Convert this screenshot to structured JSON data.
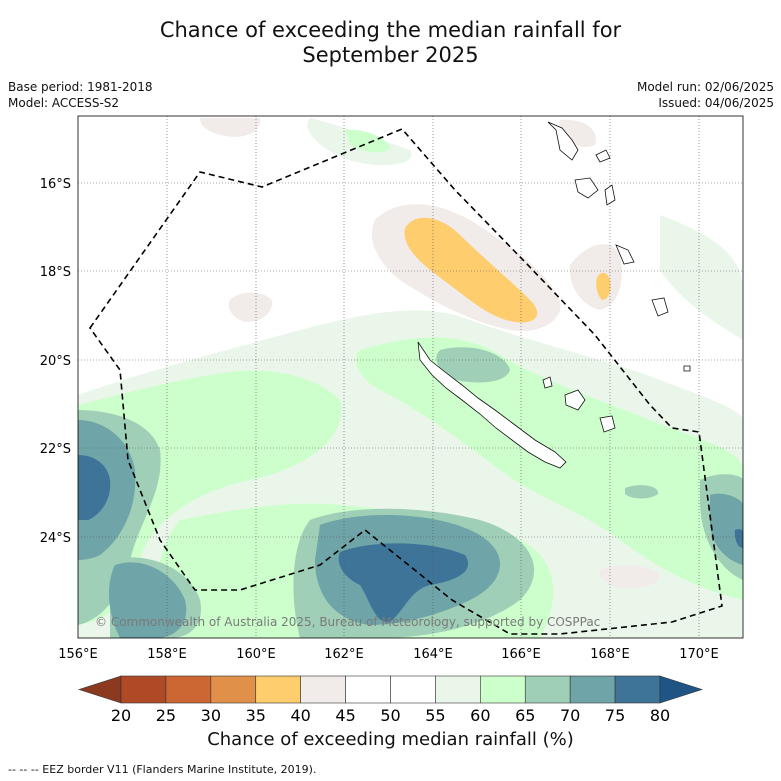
{
  "header": {
    "title_line1": "Chance of exceeding the median rainfall for",
    "title_line2": "September 2025",
    "base_period": "Base period: 1981-2018",
    "model": "Model: ACCESS-S2",
    "model_run": "Model run: 02/06/2025",
    "issued": "Issued: 04/06/2025"
  },
  "map": {
    "lat_labels": [
      "16°S",
      "18°S",
      "20°S",
      "22°S",
      "24°S"
    ],
    "lon_labels": [
      "156°E",
      "158°E",
      "160°E",
      "162°E",
      "164°E",
      "166°E",
      "168°E",
      "170°E"
    ],
    "copyright": "© Commonwealth of Australia 2025, Bureau of Meteorology, supported by COSPPac"
  },
  "colorbar": {
    "ticks": [
      "20",
      "25",
      "30",
      "35",
      "40",
      "45",
      "50",
      "55",
      "60",
      "65",
      "70",
      "75",
      "80"
    ],
    "colors": [
      "#8b3a20",
      "#b04a26",
      "#cc6633",
      "#e09048",
      "#fdcd6e",
      "#f1ecea",
      "#ffffff",
      "#ffffff",
      "#eaf6ea",
      "#ccffcc",
      "#9fcfb6",
      "#6fa4a8",
      "#3d7498",
      "#1f5485"
    ],
    "label": "Chance of exceeding median rainfall (%)"
  },
  "footnote": "--  --  -- EEZ border V11 (Flanders Marine Institute, 2019)."
}
